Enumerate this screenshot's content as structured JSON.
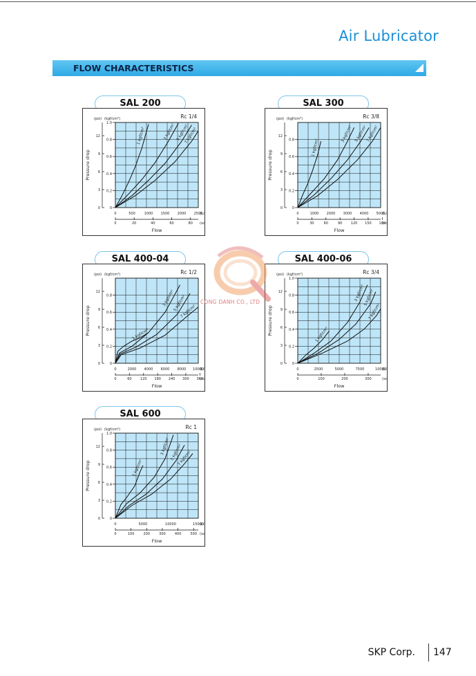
{
  "page": {
    "title": "Air Lubricator",
    "section": "FLOW CHARACTERISTICS",
    "watermark": "CONG DANH CO., LTD",
    "footer": {
      "company": "SKP Corp.",
      "page_number": "147"
    }
  },
  "chart_data": [
    {
      "type": "line",
      "title": "SAL 200",
      "port": "Rc 1/4",
      "ylabel": "Pressure drop",
      "y_units": {
        "psi": "(psi)",
        "kgf": "(kgf/cm²)"
      },
      "y_ticks_kgf": [
        "0",
        "0.2",
        "0.4",
        "0.6",
        "0.8",
        "1.0"
      ],
      "y_ticks_psi": [
        "0",
        "3",
        "6",
        "9",
        "12"
      ],
      "xlabel": "Flow",
      "x_unit_lmin": "(L/min)",
      "x_unit_scfm": "(scfm)",
      "x_ticks_lmin": [
        "0",
        "500",
        "1000",
        "1500",
        "2000",
        "2500"
      ],
      "x_ticks_scfm": [
        "0",
        "20",
        "40",
        "60",
        "80"
      ],
      "xlim": [
        0,
        2500
      ],
      "ylim": [
        0,
        1.0
      ],
      "series": [
        {
          "name": "1 kgf/cm²",
          "x": [
            0,
            200,
            400,
            600,
            800,
            1000
          ],
          "y": [
            0,
            0.14,
            0.3,
            0.48,
            0.7,
            0.98
          ]
        },
        {
          "name": "3 kgf/cm²",
          "x": [
            0,
            400,
            800,
            1200,
            1600,
            1900
          ],
          "y": [
            0,
            0.16,
            0.33,
            0.53,
            0.78,
            0.99
          ]
        },
        {
          "name": "5 kgf/cm²",
          "x": [
            0,
            500,
            1000,
            1500,
            2000,
            2300
          ],
          "y": [
            0,
            0.14,
            0.32,
            0.52,
            0.78,
            0.97
          ]
        },
        {
          "name": "7 kgf/cm²",
          "x": [
            0,
            600,
            1200,
            1800,
            2300,
            2500
          ],
          "y": [
            0,
            0.14,
            0.32,
            0.54,
            0.78,
            0.9
          ]
        }
      ]
    },
    {
      "type": "line",
      "title": "SAL 300",
      "port": "Rc 3/8",
      "ylabel": "Pressure drop",
      "y_units": {
        "psi": "(psi)",
        "kgf": "(kgf/cm²)"
      },
      "y_ticks_kgf": [
        "0",
        "0.2",
        "0.4",
        "0.6",
        "0.8"
      ],
      "y_ticks_psi": [
        "0",
        "3",
        "6",
        "9",
        "12"
      ],
      "xlabel": "Flow",
      "x_unit_lmin": "(L/min)",
      "x_unit_scfm": "(scfm)",
      "x_ticks_lmin": [
        "0",
        "1000",
        "2000",
        "3000",
        "4000",
        "5000"
      ],
      "x_ticks_scfm": [
        "0",
        "30",
        "60",
        "90",
        "120",
        "150",
        "180"
      ],
      "xlim": [
        0,
        5000
      ],
      "ylim": [
        0,
        1.0
      ],
      "series": [
        {
          "name": "1 kgf/cm²",
          "x": [
            0,
            300,
            600,
            900,
            1200,
            1400
          ],
          "y": [
            0,
            0.15,
            0.28,
            0.44,
            0.62,
            0.78
          ]
        },
        {
          "name": "3 kgf/cm²",
          "x": [
            0,
            800,
            1600,
            2400,
            3000,
            3400
          ],
          "y": [
            0,
            0.17,
            0.34,
            0.56,
            0.78,
            0.94
          ]
        },
        {
          "name": "5 kgf/cm²",
          "x": [
            0,
            1000,
            2000,
            3000,
            3800,
            4300
          ],
          "y": [
            0,
            0.15,
            0.34,
            0.56,
            0.78,
            0.94
          ]
        },
        {
          "name": "7 kgf/cm²",
          "x": [
            0,
            1200,
            2400,
            3600,
            4500,
            5000
          ],
          "y": [
            0,
            0.14,
            0.33,
            0.56,
            0.78,
            0.94
          ]
        }
      ]
    },
    {
      "type": "line",
      "title": "SAL 400-04",
      "port": "Rc 1/2",
      "ylabel": "Pressure drop",
      "y_units": {
        "psi": "(psi)",
        "kgf": "(kgf/cm²)"
      },
      "y_ticks_kgf": [
        "0",
        "0.2",
        "0.4",
        "0.6",
        "0.8"
      ],
      "y_ticks_psi": [
        "0",
        "3",
        "6",
        "9",
        "12"
      ],
      "xlabel": "Flow",
      "x_unit_lmin": "(L/min)",
      "x_unit_scfm": "(scfm)",
      "x_ticks_lmin": [
        "0",
        "2000",
        "4000",
        "6000",
        "8000",
        "10000"
      ],
      "x_ticks_scfm": [
        "0",
        "60",
        "120",
        "180",
        "240",
        "300",
        "360"
      ],
      "xlim": [
        0,
        10000
      ],
      "ylim": [
        0,
        1.0
      ],
      "series": [
        {
          "name": "1 kgf/cm²",
          "x": [
            0,
            300,
            1000,
            2000,
            3000,
            4000
          ],
          "y": [
            0,
            0.14,
            0.2,
            0.26,
            0.3,
            0.36
          ]
        },
        {
          "name": "3 kgf/cm²",
          "x": [
            0,
            500,
            2000,
            4000,
            6000,
            7800
          ],
          "y": [
            0,
            0.12,
            0.2,
            0.36,
            0.6,
            0.92
          ]
        },
        {
          "name": "5 kgf/cm²",
          "x": [
            0,
            600,
            2500,
            5000,
            7500,
            9000
          ],
          "y": [
            0,
            0.11,
            0.19,
            0.34,
            0.58,
            0.82
          ]
        },
        {
          "name": "7 kgf/cm²",
          "x": [
            0,
            700,
            3000,
            6000,
            8500,
            10000
          ],
          "y": [
            0,
            0.1,
            0.18,
            0.33,
            0.54,
            0.66
          ]
        }
      ]
    },
    {
      "type": "line",
      "title": "SAL 400-06",
      "port": "Rc 3/4",
      "ylabel": "Pressure drop",
      "y_units": {
        "psi": "(psi)",
        "kgf": "(kgf/cm²)"
      },
      "y_ticks_kgf": [
        "0",
        "0.2",
        "0.4",
        "0.6",
        "0.8",
        "1.0"
      ],
      "y_ticks_psi": [
        "0",
        "3",
        "6",
        "9",
        "12"
      ],
      "xlabel": "Flow",
      "x_unit_lmin": "(L/min)",
      "x_unit_scfm": "(scfm)",
      "x_ticks_lmin": [
        "0",
        "2500",
        "5000",
        "7500",
        "10000"
      ],
      "x_ticks_scfm": [
        "0",
        "100",
        "200",
        "300"
      ],
      "xlim": [
        0,
        10000
      ],
      "ylim": [
        0,
        1.0
      ],
      "series": [
        {
          "name": "1 kgf/cm²",
          "x": [
            0,
            1000,
            2000,
            3000,
            3800
          ],
          "y": [
            0,
            0.1,
            0.18,
            0.28,
            0.38
          ]
        },
        {
          "name": "3 kgf/cm²",
          "x": [
            0,
            2000,
            4000,
            6000,
            7500,
            8400
          ],
          "y": [
            0,
            0.12,
            0.26,
            0.48,
            0.72,
            0.92
          ]
        },
        {
          "name": "5 kgf/cm²",
          "x": [
            0,
            2500,
            5000,
            7000,
            8800,
            9400
          ],
          "y": [
            0,
            0.12,
            0.28,
            0.46,
            0.7,
            0.84
          ]
        },
        {
          "name": "7 kgf/cm²",
          "x": [
            0,
            3000,
            6000,
            8000,
            9500,
            10000
          ],
          "y": [
            0,
            0.12,
            0.26,
            0.4,
            0.56,
            0.64
          ]
        }
      ]
    },
    {
      "type": "line",
      "title": "SAL 600",
      "port": "Rc 1",
      "ylabel": "Pressure drop",
      "y_units": {
        "psi": "(psi)",
        "kgf": "(kgf/cm²)"
      },
      "y_ticks_kgf": [
        "0",
        "0.2",
        "0.4",
        "0.6",
        "0.8",
        "1.0"
      ],
      "y_ticks_psi": [
        "0",
        "3",
        "6",
        "9",
        "12"
      ],
      "xlabel": "Flow",
      "x_unit_lmin": "(L/min)",
      "x_unit_scfm": "(scfm)",
      "x_ticks_lmin": [
        "0",
        "5000",
        "10000",
        "15000"
      ],
      "x_ticks_scfm": [
        "0",
        "100",
        "200",
        "300",
        "400",
        "500"
      ],
      "xlim": [
        0,
        15000
      ],
      "ylim": [
        0,
        1.0
      ],
      "series": [
        {
          "name": "1 kgf/cm²",
          "x": [
            0,
            1000,
            2000,
            3500,
            4500,
            5000
          ],
          "y": [
            0,
            0.16,
            0.24,
            0.38,
            0.55,
            0.62
          ]
        },
        {
          "name": "3 kgf/cm²",
          "x": [
            0,
            2000,
            4500,
            7000,
            9000,
            10500
          ],
          "y": [
            0,
            0.17,
            0.3,
            0.48,
            0.7,
            0.98
          ]
        },
        {
          "name": "5 kgf/cm²",
          "x": [
            0,
            2500,
            5500,
            8500,
            11000,
            12500
          ],
          "y": [
            0,
            0.15,
            0.28,
            0.46,
            0.68,
            0.86
          ]
        },
        {
          "name": "7 kgf/cm²",
          "x": [
            0,
            3000,
            6500,
            10000,
            12500,
            14000
          ],
          "y": [
            0,
            0.15,
            0.28,
            0.46,
            0.64,
            0.76
          ]
        }
      ]
    }
  ]
}
